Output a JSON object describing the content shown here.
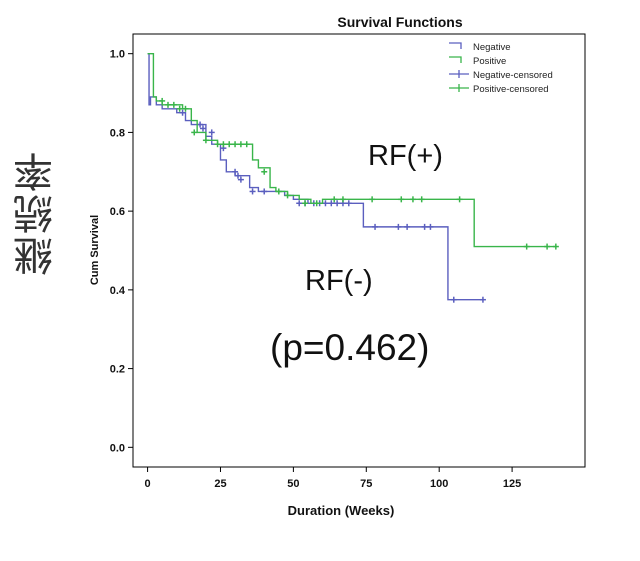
{
  "chart_data": {
    "type": "line",
    "title": "Survival Functions",
    "xlabel": "Duration (Weeks)",
    "ylabel": "Cum Survival",
    "side_label": "継続率",
    "xlim": [
      -5,
      150
    ],
    "ylim": [
      -0.05,
      1.05
    ],
    "xticks": [
      0,
      25,
      50,
      75,
      100,
      125
    ],
    "yticks": [
      0.0,
      0.2,
      0.4,
      0.6,
      0.8,
      1.0
    ],
    "ytick_labels": [
      "0.0",
      "0.2",
      "0.4",
      "0.6",
      "0.8",
      "1.0"
    ],
    "legend": [
      {
        "name": "Negative",
        "kind": "line",
        "color": "#5b5fbf"
      },
      {
        "name": "Positive",
        "kind": "line",
        "color": "#39b54a"
      },
      {
        "name": "Negative-censored",
        "kind": "censor",
        "color": "#5b5fbf"
      },
      {
        "name": "Positive-censored",
        "kind": "censor",
        "color": "#39b54a"
      }
    ],
    "annotations": {
      "positive_label": "RF(+)",
      "negative_label": "RF(-)",
      "pvalue": "(p=0.462)"
    },
    "series": [
      {
        "name": "Negative",
        "color": "#5b5fbf",
        "steps": [
          [
            0,
            1.0
          ],
          [
            0.5,
            0.87
          ],
          [
            1,
            0.89
          ],
          [
            3,
            0.87
          ],
          [
            5,
            0.86
          ],
          [
            10,
            0.85
          ],
          [
            13,
            0.83
          ],
          [
            15,
            0.82
          ],
          [
            20,
            0.79
          ],
          [
            22,
            0.77
          ],
          [
            25,
            0.73
          ],
          [
            27,
            0.7
          ],
          [
            30,
            0.69
          ],
          [
            35,
            0.66
          ],
          [
            38,
            0.65
          ],
          [
            45,
            0.65
          ],
          [
            47,
            0.64
          ],
          [
            50,
            0.63
          ],
          [
            55,
            0.62
          ],
          [
            74,
            0.56
          ],
          [
            103,
            0.375
          ],
          [
            115,
            0.375
          ]
        ],
        "censored": [
          [
            12,
            0.85
          ],
          [
            18,
            0.82
          ],
          [
            19,
            0.81
          ],
          [
            22,
            0.8
          ],
          [
            26,
            0.76
          ],
          [
            30,
            0.7
          ],
          [
            31,
            0.69
          ],
          [
            32,
            0.68
          ],
          [
            36,
            0.65
          ],
          [
            40,
            0.65
          ],
          [
            52,
            0.62
          ],
          [
            54,
            0.62
          ],
          [
            57,
            0.62
          ],
          [
            59,
            0.62
          ],
          [
            61,
            0.62
          ],
          [
            63,
            0.62
          ],
          [
            65,
            0.62
          ],
          [
            67,
            0.62
          ],
          [
            69,
            0.62
          ],
          [
            78,
            0.56
          ],
          [
            86,
            0.56
          ],
          [
            89,
            0.56
          ],
          [
            95,
            0.56
          ],
          [
            97,
            0.56
          ],
          [
            105,
            0.375
          ],
          [
            115,
            0.375
          ]
        ]
      },
      {
        "name": "Positive",
        "color": "#39b54a",
        "steps": [
          [
            0,
            1.0
          ],
          [
            2,
            0.89
          ],
          [
            3,
            0.88
          ],
          [
            5,
            0.87
          ],
          [
            12,
            0.86
          ],
          [
            15,
            0.83
          ],
          [
            17,
            0.8
          ],
          [
            20,
            0.78
          ],
          [
            24,
            0.77
          ],
          [
            36,
            0.73
          ],
          [
            38,
            0.71
          ],
          [
            42,
            0.66
          ],
          [
            44,
            0.65
          ],
          [
            48,
            0.64
          ],
          [
            52,
            0.63
          ],
          [
            56,
            0.62
          ],
          [
            60,
            0.63
          ],
          [
            112,
            0.51
          ],
          [
            140,
            0.51
          ]
        ],
        "censored": [
          [
            5,
            0.88
          ],
          [
            7,
            0.87
          ],
          [
            9,
            0.87
          ],
          [
            11,
            0.86
          ],
          [
            13,
            0.86
          ],
          [
            16,
            0.8
          ],
          [
            20,
            0.78
          ],
          [
            24,
            0.77
          ],
          [
            26,
            0.77
          ],
          [
            28,
            0.77
          ],
          [
            30,
            0.77
          ],
          [
            32,
            0.77
          ],
          [
            34,
            0.77
          ],
          [
            40,
            0.7
          ],
          [
            45,
            0.65
          ],
          [
            48,
            0.64
          ],
          [
            54,
            0.62
          ],
          [
            58,
            0.62
          ],
          [
            64,
            0.63
          ],
          [
            67,
            0.63
          ],
          [
            77,
            0.63
          ],
          [
            87,
            0.63
          ],
          [
            91,
            0.63
          ],
          [
            94,
            0.63
          ],
          [
            107,
            0.63
          ],
          [
            130,
            0.51
          ],
          [
            137,
            0.51
          ],
          [
            140,
            0.51
          ]
        ]
      }
    ]
  }
}
